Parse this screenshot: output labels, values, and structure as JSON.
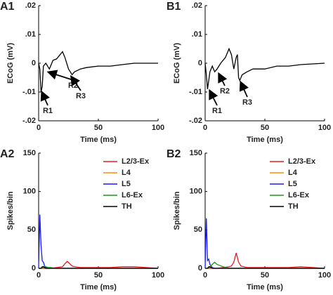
{
  "chart_data": [
    {
      "type": "line",
      "panel": "A1",
      "xlabel": "Time (ms)",
      "ylabel": "ECoG (mV)",
      "xlim": [
        0,
        100
      ],
      "xticks": [
        0,
        50,
        100
      ],
      "ylim": [
        -0.02,
        0.02
      ],
      "yticks": [
        {
          "value": 0.02,
          "label": ".02"
        },
        {
          "value": 0.01,
          "label": ".01"
        },
        0,
        {
          "value": -0.01,
          "label": "-.01"
        },
        {
          "value": -0.02,
          "label": "-.02"
        }
      ],
      "x": [
        0,
        1,
        2,
        3,
        4,
        6,
        9,
        12,
        15,
        18,
        20,
        22,
        25,
        28,
        30,
        35,
        40,
        50,
        60,
        70,
        80,
        100
      ],
      "series": [
        {
          "name": "ECoG",
          "color": "#000000",
          "values": [
            0,
            -0.002,
            -0.01,
            -0.008,
            -0.001,
            0,
            -0.002,
            0.001,
            0.0015,
            0.003,
            0.004,
            0.002,
            -0.002,
            -0.004,
            -0.003,
            -0.002,
            -0.0015,
            -0.001,
            -0.001,
            -0.0005,
            0,
            0
          ]
        }
      ],
      "annotations": [
        "R1",
        "R2",
        "R3"
      ]
    },
    {
      "type": "line",
      "panel": "B1",
      "xlabel": "Time (ms)",
      "ylabel": "ECoG (mV)",
      "xlim": [
        0,
        100
      ],
      "xticks": [
        0,
        50,
        100
      ],
      "ylim": [
        -0.02,
        0.02
      ],
      "yticks": [
        {
          "value": 0.02,
          "label": ".02"
        },
        {
          "value": 0.01,
          "label": ".01"
        },
        0,
        {
          "value": -0.01,
          "label": "-.01"
        },
        {
          "value": -0.02,
          "label": "-.02"
        }
      ],
      "x": [
        0,
        1,
        2,
        3,
        4,
        6,
        8,
        10,
        13,
        17,
        20,
        22,
        24,
        26,
        27,
        28,
        29,
        31,
        35,
        40,
        50,
        60,
        70,
        80,
        100
      ],
      "series": [
        {
          "name": "ECoG",
          "color": "#000000",
          "values": [
            0,
            -0.004,
            -0.009,
            -0.006,
            -0.003,
            -0.001,
            -0.003,
            -0.002,
            0,
            0.002,
            0.005,
            0.003,
            -0.002,
            0.002,
            0.003,
            -0.005,
            -0.006,
            -0.004,
            -0.003,
            -0.002,
            -0.002,
            -0.001,
            -0.001,
            -0.0005,
            0
          ]
        }
      ],
      "annotations": [
        "R1",
        "R2",
        "R3"
      ]
    },
    {
      "type": "line",
      "panel": "A2",
      "xlabel": "Time (ms)",
      "ylabel": "Spikes/bin",
      "xlim": [
        0,
        100
      ],
      "xticks": [
        0,
        50,
        100
      ],
      "ylim": [
        0,
        150
      ],
      "yticks": [
        0,
        50,
        100,
        150
      ],
      "legend": "upper right",
      "x": [
        0,
        1,
        2,
        3,
        4,
        5,
        6,
        8,
        10,
        15,
        20,
        22,
        24,
        26,
        28,
        30,
        35,
        40,
        50,
        60,
        70,
        80,
        90,
        100
      ],
      "series": [
        {
          "name": "L2/3-Ex",
          "color": "#e8191c",
          "values": [
            0,
            0,
            0,
            0,
            0,
            0,
            0,
            0,
            0,
            1,
            2,
            6,
            9,
            6,
            3,
            2,
            1,
            1,
            1,
            1,
            2,
            2,
            1,
            0
          ]
        },
        {
          "name": "L4",
          "color": "#ff8c00",
          "values": [
            0,
            0,
            0,
            0,
            1,
            1,
            0,
            0,
            0,
            0,
            0,
            0,
            0,
            0,
            0,
            0,
            0,
            0,
            0,
            0,
            0,
            0,
            0,
            0
          ]
        },
        {
          "name": "L5",
          "color": "#1a1aff",
          "values": [
            0,
            70,
            30,
            10,
            8,
            3,
            1,
            0,
            0,
            0,
            0,
            0,
            0,
            0,
            0,
            0,
            0,
            0,
            0,
            0,
            0,
            0,
            0,
            0
          ]
        },
        {
          "name": "L6-Ex",
          "color": "#1a9a1a",
          "values": [
            0,
            0,
            0,
            0,
            2,
            3,
            2,
            1,
            1,
            0,
            0,
            0,
            0,
            0,
            0,
            0,
            0,
            0,
            0,
            0,
            0,
            0,
            0,
            0
          ]
        },
        {
          "name": "TH",
          "color": "#000000",
          "values": [
            0,
            0,
            0,
            2,
            2,
            1,
            0,
            0,
            0,
            0,
            0,
            0,
            0,
            0,
            0,
            0,
            0,
            0,
            0,
            0,
            0,
            0,
            0,
            0
          ]
        }
      ]
    },
    {
      "type": "line",
      "panel": "B2",
      "xlabel": "Time (ms)",
      "ylabel": "Spikes/bin",
      "xlim": [
        0,
        100
      ],
      "xticks": [
        0,
        50,
        100
      ],
      "ylim": [
        0,
        150
      ],
      "yticks": [
        0,
        50,
        100,
        150
      ],
      "legend": "upper right",
      "x": [
        0,
        1,
        2,
        3,
        4,
        5,
        6,
        8,
        10,
        15,
        20,
        22,
        24,
        26,
        28,
        30,
        35,
        40,
        50,
        60,
        70,
        80,
        90,
        100
      ],
      "series": [
        {
          "name": "L2/3-Ex",
          "color": "#e8191c",
          "values": [
            0,
            0,
            0,
            0,
            0,
            0,
            0,
            0,
            0,
            1,
            2,
            3,
            8,
            20,
            8,
            3,
            1,
            1,
            1,
            1,
            1,
            2,
            1,
            0
          ]
        },
        {
          "name": "L4",
          "color": "#ff8c00",
          "values": [
            0,
            0,
            0,
            0,
            1,
            1,
            0,
            0,
            0,
            0,
            0,
            0,
            0,
            0,
            0,
            0,
            0,
            0,
            0,
            0,
            0,
            0,
            0,
            0
          ]
        },
        {
          "name": "L5",
          "color": "#1a1aff",
          "values": [
            0,
            65,
            10,
            12,
            5,
            3,
            1,
            0,
            0,
            0,
            0,
            0,
            0,
            0,
            0,
            0,
            0,
            0,
            0,
            0,
            0,
            0,
            0,
            0
          ]
        },
        {
          "name": "L6-Ex",
          "color": "#1a9a1a",
          "values": [
            0,
            0,
            0,
            0,
            2,
            3,
            5,
            8,
            5,
            2,
            0,
            0,
            0,
            0,
            0,
            0,
            0,
            0,
            0,
            0,
            0,
            0,
            0,
            0
          ]
        },
        {
          "name": "TH",
          "color": "#000000",
          "values": [
            0,
            0,
            0,
            2,
            2,
            1,
            0,
            0,
            0,
            0,
            0,
            0,
            0,
            0,
            0,
            0,
            0,
            0,
            0,
            0,
            0,
            0,
            0,
            0
          ]
        }
      ]
    }
  ]
}
